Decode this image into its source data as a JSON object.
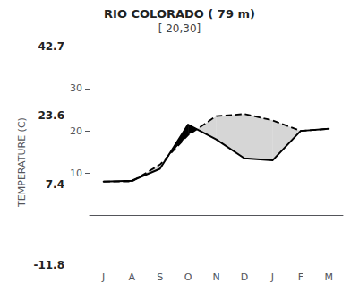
{
  "chart_data": {
    "type": "line",
    "title": "RIO COLORADO ( 79 m)",
    "subtitle": "[ 20,30]",
    "categories": [
      "J",
      "A",
      "S",
      "O",
      "N",
      "D",
      "J",
      "F",
      "M"
    ],
    "ylabel": "TEMPERATURE (C)",
    "series": [
      {
        "values": [
          8.0,
          8.2,
          11.0,
          21.5,
          18.0,
          13.5,
          13.0,
          20.0,
          20.5
        ],
        "color": "#000000",
        "line_style": "solid"
      },
      {
        "values": [
          8.0,
          8.0,
          12.0,
          19.0,
          23.5,
          24.0,
          22.5,
          20.0,
          20.5
        ],
        "color": "#000000",
        "line_style": "dashed"
      }
    ],
    "ylim": [
      -11.8,
      37.0
    ],
    "yticks": [
      10,
      20,
      30
    ],
    "grid": false,
    "annotations": [
      "23.6",
      "42.7",
      "7.4",
      "-11.8"
    ]
  }
}
